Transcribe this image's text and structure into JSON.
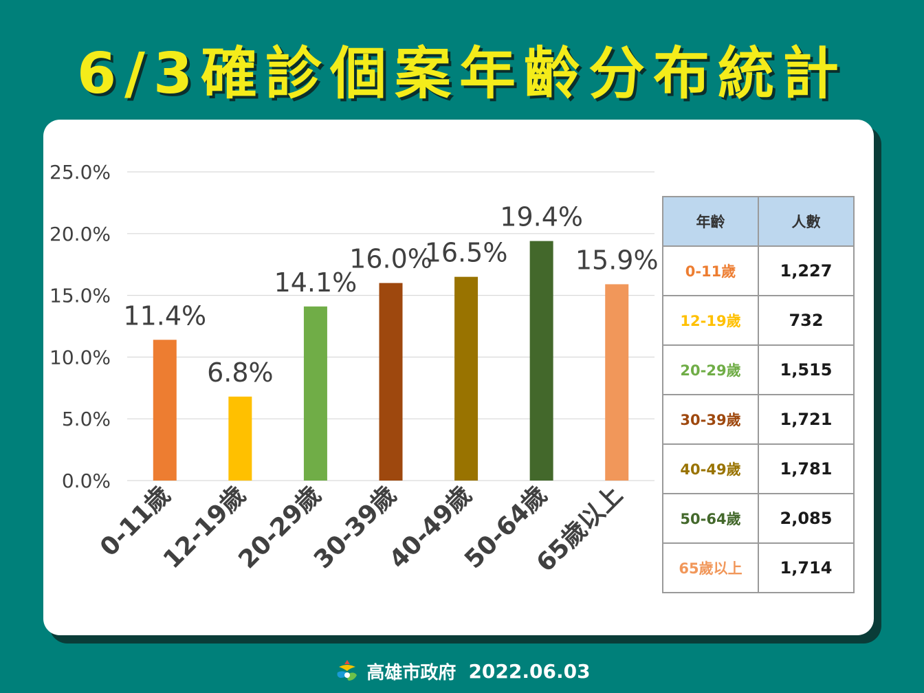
{
  "header": {
    "title": "6/3確診個案年齡分布統計"
  },
  "colors": {
    "background": "#00807a",
    "title": "#f4ec1a",
    "series": [
      "#ed7d31",
      "#ffc000",
      "#70ad47",
      "#9e480e",
      "#997300",
      "#43682b",
      "#f1975a"
    ]
  },
  "chart_data": {
    "type": "bar",
    "categories": [
      "0-11歲",
      "12-19歲",
      "20-29歲",
      "30-39歲",
      "40-49歲",
      "50-64歲",
      "65歲以上"
    ],
    "values": [
      11.4,
      6.8,
      14.1,
      16.0,
      16.5,
      19.4,
      15.9
    ],
    "value_labels": [
      "11.4%",
      "6.8%",
      "14.1%",
      "16.0%",
      "16.5%",
      "19.4%",
      "15.9%"
    ],
    "y_ticks": [
      "0.0%",
      "5.0%",
      "10.0%",
      "15.0%",
      "20.0%",
      "25.0%"
    ],
    "ylim": [
      0,
      25
    ],
    "grid": true,
    "legend": "none"
  },
  "table": {
    "headers": [
      "年齡",
      "人數"
    ],
    "rows": [
      {
        "age": "0-11歲",
        "count": "1,227"
      },
      {
        "age": "12-19歲",
        "count": "732"
      },
      {
        "age": "20-29歲",
        "count": "1,515"
      },
      {
        "age": "30-39歲",
        "count": "1,721"
      },
      {
        "age": "40-49歲",
        "count": "1,781"
      },
      {
        "age": "50-64歲",
        "count": "2,085"
      },
      {
        "age": "65歲以上",
        "count": "1,714"
      }
    ]
  },
  "footer": {
    "org": "高雄市政府",
    "date": "2022.06.03",
    "logo_icon": "kaohsiung-logo-icon"
  }
}
